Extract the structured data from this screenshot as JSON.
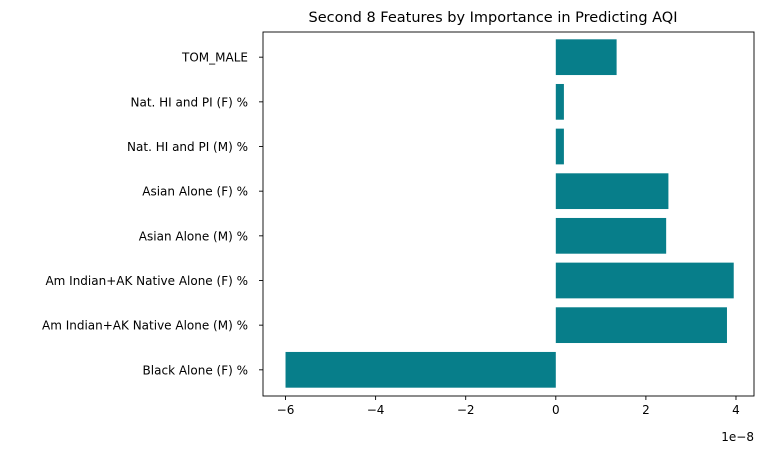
{
  "chart_data": {
    "type": "bar",
    "orientation": "horizontal",
    "title": "Second 8 Features by Importance in Predicting AQI",
    "xlabel": "",
    "ylabel": "",
    "x_scale_label": "1e−8",
    "categories": [
      "Black Alone (F) %",
      "Am Indian+AK Native Alone (M) %",
      "Am Indian+AK Native Alone (F) %",
      "Asian Alone (M) %",
      "Asian Alone (F) %",
      "Nat. HI and PI (M) %",
      "Nat. HI and PI (F) %",
      "TOM_MALE"
    ],
    "values": [
      -6e-08,
      3.8e-08,
      3.95e-08,
      2.45e-08,
      2.5e-08,
      1.8e-09,
      1.8e-09,
      1.35e-08
    ],
    "xlim": [
      -6.5e-08,
      4.4e-08
    ],
    "xticks": [
      -6e-08,
      -4e-08,
      -2e-08,
      0,
      2e-08,
      4e-08
    ],
    "xtick_labels": [
      "−6",
      "−4",
      "−2",
      "0",
      "2",
      "4"
    ],
    "bar_color": "#077e8a",
    "grid": false,
    "legend": "none"
  }
}
